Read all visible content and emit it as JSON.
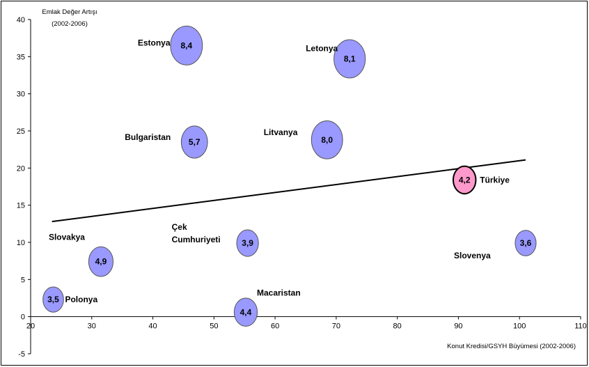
{
  "chart_data": {
    "type": "bubble",
    "ylabel_line1": "Emlak Değer Artışı",
    "ylabel_line2": "(2002-2006)",
    "xlabel": "Konut Kredisi/GSYH Büyümesi (2002-2006)",
    "xlim": [
      20,
      110
    ],
    "ylim": [
      -5,
      40
    ],
    "x_ticks": [
      20,
      30,
      40,
      50,
      60,
      70,
      80,
      90,
      100,
      110
    ],
    "y_ticks": [
      -5,
      0,
      5,
      10,
      15,
      20,
      25,
      30,
      35,
      40
    ],
    "grid": false,
    "trendline": {
      "x": [
        23.5,
        101
      ],
      "y": [
        12.8,
        21.1
      ]
    },
    "colors": {
      "default_bubble": "#9999ff",
      "highlight_bubble": "#ff99cc"
    },
    "points": [
      {
        "country": "Estonya",
        "x": 45.5,
        "y": 36.5,
        "size": 8.4,
        "size_label": "8,4",
        "highlight": false
      },
      {
        "country": "Letonya",
        "x": 72.2,
        "y": 34.7,
        "size": 8.1,
        "size_label": "8,1",
        "highlight": false
      },
      {
        "country": "Bulgaristan",
        "x": 46.8,
        "y": 23.5,
        "size": 5.7,
        "size_label": "5,7",
        "highlight": false
      },
      {
        "country": "Litvanya",
        "x": 68.5,
        "y": 23.8,
        "size": 8.0,
        "size_label": "8,0",
        "highlight": false
      },
      {
        "country": "Türkiye",
        "x": 91.0,
        "y": 18.4,
        "size": 4.2,
        "size_label": "4,2",
        "highlight": true
      },
      {
        "country": "Slovakya",
        "x": 31.5,
        "y": 7.4,
        "size": 4.9,
        "size_label": "4,9",
        "highlight": false
      },
      {
        "country": "Çek Cumhuriyeti",
        "x": 55.5,
        "y": 9.9,
        "size": 3.9,
        "size_label": "3,9",
        "highlight": false
      },
      {
        "country": "Slovenya",
        "x": 101.0,
        "y": 9.9,
        "size": 3.6,
        "size_label": "3,6",
        "highlight": false
      },
      {
        "country": "Polonya",
        "x": 23.7,
        "y": 2.3,
        "size": 3.5,
        "size_label": "3,5",
        "highlight": false
      },
      {
        "country": "Macaristan",
        "x": 55.2,
        "y": 0.6,
        "size": 4.4,
        "size_label": "4,4",
        "highlight": false
      }
    ]
  }
}
